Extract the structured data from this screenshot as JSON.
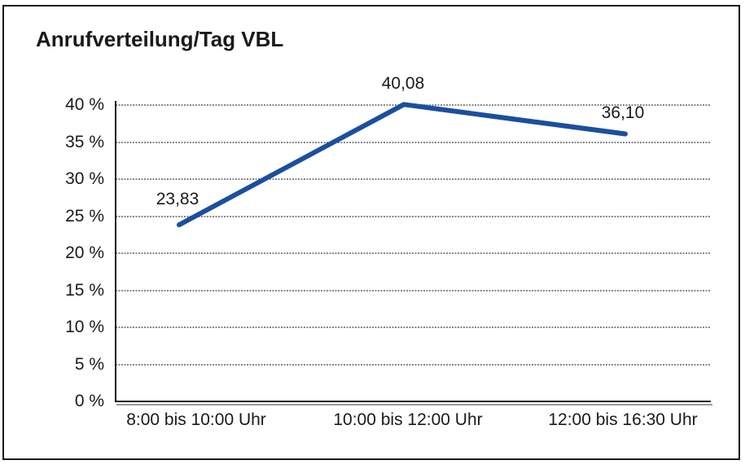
{
  "figure": {
    "title": "Anrufverteilung/Tag VBL"
  },
  "chart_data": {
    "type": "line",
    "title": "Anrufverteilung/Tag VBL",
    "categories": [
      "8:00 bis 10:00 Uhr",
      "10:00 bis 12:00 Uhr",
      "12:00 bis 16:30 Uhr"
    ],
    "values": [
      23.83,
      40.08,
      36.1
    ],
    "value_labels": [
      "23,83",
      "40,08",
      "36,10"
    ],
    "xlabel": "",
    "ylabel": "",
    "ylim": [
      0,
      40
    ],
    "yticks": [
      {
        "value": 0,
        "label": "0 %"
      },
      {
        "value": 5,
        "label": "5 %"
      },
      {
        "value": 10,
        "label": "10 %"
      },
      {
        "value": 15,
        "label": "15 %"
      },
      {
        "value": 20,
        "label": "20 %"
      },
      {
        "value": 25,
        "label": "25 %"
      },
      {
        "value": 30,
        "label": "30 %"
      },
      {
        "value": 35,
        "label": "35 %"
      },
      {
        "value": 40,
        "label": "40 %"
      }
    ],
    "grid": "horizontal-dotted",
    "legend": "none",
    "markers": "none",
    "colors": {
      "line": "#1B4F9E",
      "grid": "#858585",
      "axis": "#1a1a1a",
      "axis_shadow": "#9a9a9a",
      "text": "#1a1a1a",
      "frame_border": "#1a1a1a",
      "background": "#ffffff"
    }
  }
}
